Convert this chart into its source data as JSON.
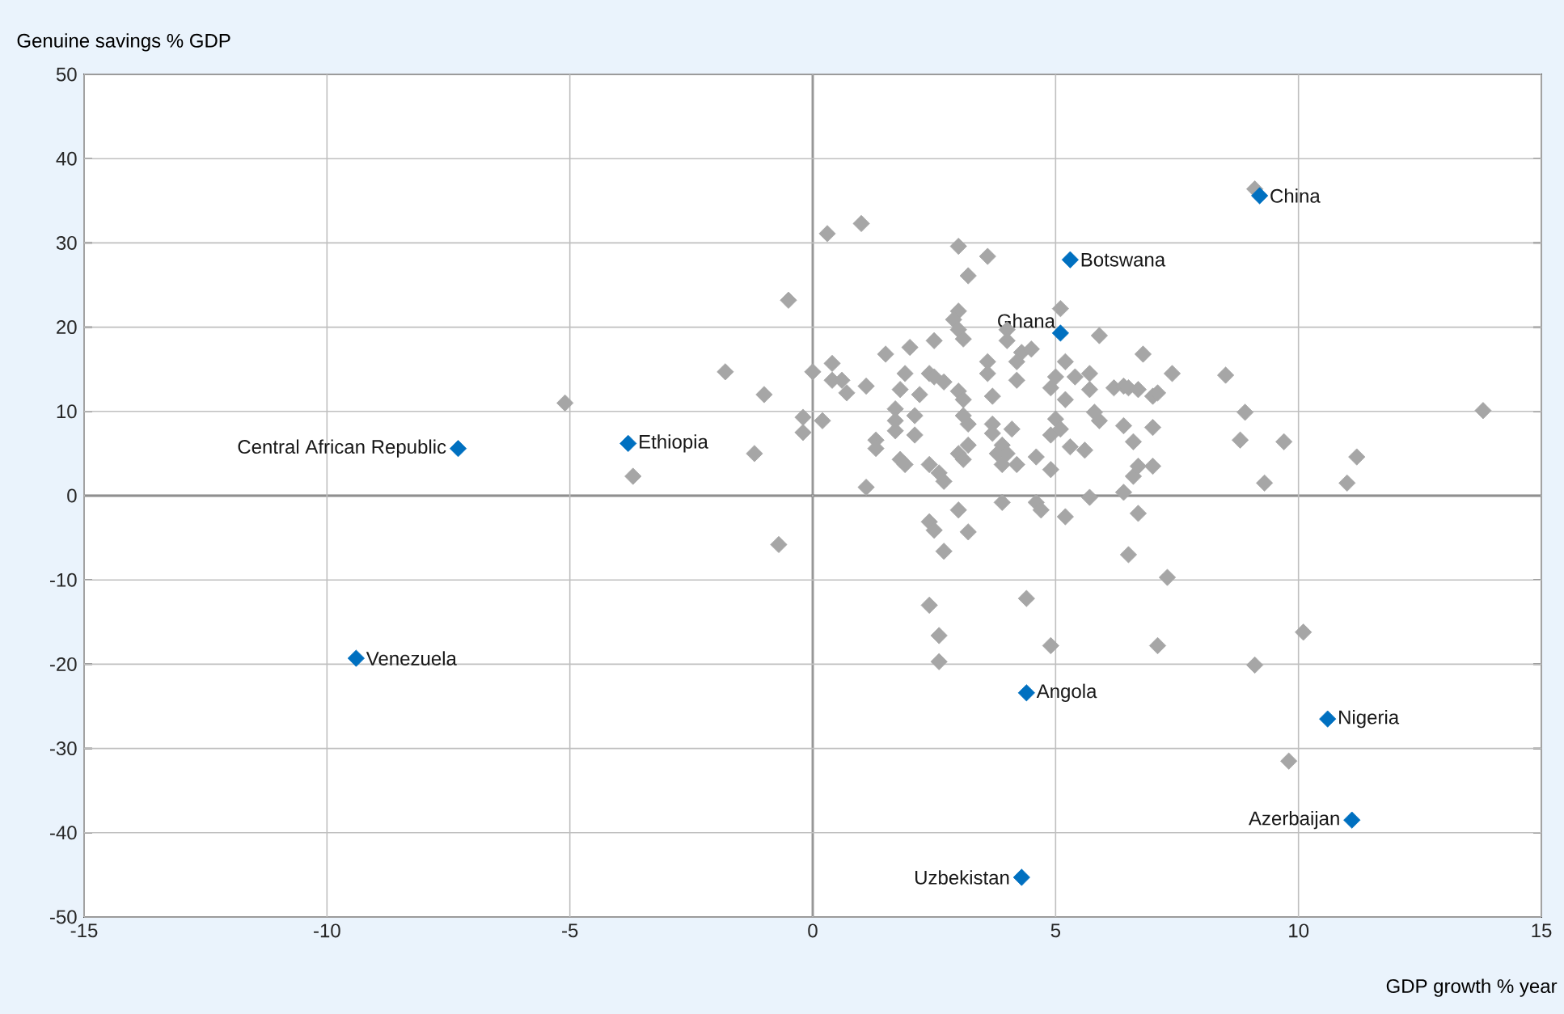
{
  "chart_data": {
    "type": "scatter",
    "xlabel": "GDP growth % year",
    "ylabel": "Genuine savings % GDP",
    "xlim": [
      -15,
      15
    ],
    "ylim": [
      -50,
      50
    ],
    "xticks": [
      -15,
      -10,
      -5,
      0,
      5,
      10,
      15
    ],
    "yticks": [
      -50,
      -40,
      -30,
      -20,
      -10,
      0,
      10,
      20,
      30,
      40,
      50
    ],
    "grid": true,
    "marker": "diamond",
    "series": [
      {
        "color": "#a6a6a6",
        "x": [
          -5.1,
          -1.8,
          -1.0,
          -1.2,
          -3.7,
          -0.7,
          -0.5,
          0.3,
          1.0,
          0.0,
          -0.2,
          -0.2,
          0.2,
          0.4,
          0.4,
          0.6,
          0.7,
          1.1,
          1.1,
          1.3,
          1.3,
          1.5,
          1.7,
          1.7,
          1.7,
          1.8,
          1.9,
          2.0,
          2.2,
          1.8,
          1.9,
          2.1,
          2.1,
          2.4,
          2.5,
          2.5,
          2.7,
          2.4,
          2.6,
          2.7,
          2.4,
          2.5,
          2.7,
          2.4,
          2.6,
          2.6,
          3.0,
          3.0,
          3.2,
          3.6,
          3.0,
          2.9,
          3.0,
          3.1,
          3.0,
          3.1,
          3.1,
          3.2,
          3.0,
          3.1,
          3.2,
          3.2,
          3.6,
          3.6,
          3.7,
          3.7,
          3.7,
          3.9,
          3.8,
          3.9,
          3.9,
          4.0,
          4.0,
          4.3,
          4.2,
          4.2,
          4.1,
          4.0,
          4.2,
          4.4,
          4.5,
          4.6,
          4.6,
          4.7,
          4.9,
          4.9,
          4.9,
          4.9,
          5.0,
          5.0,
          5.1,
          5.2,
          5.2,
          5.2,
          5.1,
          5.3,
          5.4,
          5.7,
          5.7,
          5.9,
          5.6,
          5.7,
          5.8,
          5.9,
          6.2,
          6.4,
          6.5,
          6.4,
          6.5,
          6.6,
          6.6,
          6.4,
          6.7,
          6.7,
          6.8,
          6.7,
          7.0,
          7.0,
          7.1,
          7.4,
          7.0,
          7.1,
          7.3,
          8.5,
          8.9,
          8.8,
          9.3,
          9.7,
          9.1,
          10.1,
          9.8,
          11.0,
          11.2,
          13.8,
          9.1
        ],
        "values": [
          11.0,
          14.7,
          12.0,
          5.0,
          2.3,
          -5.8,
          23.2,
          31.1,
          32.3,
          14.7,
          9.3,
          7.5,
          8.9,
          15.7,
          13.7,
          13.7,
          12.2,
          13.0,
          1.0,
          6.6,
          5.6,
          16.8,
          7.7,
          10.3,
          8.9,
          12.6,
          14.5,
          17.6,
          12.0,
          4.3,
          3.7,
          9.5,
          7.2,
          14.5,
          14.1,
          18.4,
          13.5,
          3.7,
          2.7,
          1.7,
          -3.1,
          -4.1,
          -6.6,
          -13.0,
          -16.6,
          -19.7,
          -1.7,
          29.6,
          26.1,
          28.4,
          21.9,
          20.9,
          19.7,
          18.6,
          12.4,
          11.4,
          9.5,
          8.5,
          5.0,
          4.3,
          6.0,
          -4.3,
          15.9,
          14.5,
          11.8,
          8.5,
          7.4,
          6.0,
          5.0,
          3.7,
          -0.8,
          19.7,
          18.4,
          17.0,
          15.9,
          13.7,
          7.9,
          5.0,
          3.7,
          -12.2,
          17.4,
          4.6,
          -0.8,
          -1.7,
          -17.8,
          3.1,
          7.2,
          12.8,
          14.1,
          9.1,
          22.2,
          15.9,
          11.4,
          -2.5,
          7.9,
          5.8,
          14.1,
          14.5,
          12.6,
          19.0,
          5.4,
          -0.2,
          9.9,
          8.9,
          12.8,
          13.0,
          12.8,
          8.3,
          -7.0,
          6.4,
          2.3,
          0.4,
          3.5,
          -2.1,
          16.8,
          12.6,
          11.8,
          8.1,
          12.2,
          14.5,
          3.5,
          -17.8,
          -9.7,
          14.3,
          9.9,
          6.6,
          1.5,
          6.4,
          -20.1,
          -16.2,
          -31.5,
          1.5,
          4.6,
          10.1,
          36.4
        ]
      },
      {
        "color": "#0070c0",
        "x": [
          9.2,
          5.3,
          5.1,
          -7.3,
          -3.8,
          -9.4,
          4.4,
          10.6,
          11.1,
          4.3
        ],
        "values": [
          35.6,
          28.0,
          19.3,
          5.6,
          6.2,
          -19.3,
          -23.4,
          -26.5,
          -38.5,
          -45.3
        ]
      }
    ],
    "annotations": [
      {
        "text": "China",
        "x": 9.2,
        "y": 35.6
      },
      {
        "text": "Botswana",
        "x": 5.3,
        "y": 28.0
      },
      {
        "text": "Ghana",
        "x": 5.1,
        "y": 19.3
      },
      {
        "text": "Central African Republic",
        "x": -7.3,
        "y": 5.6
      },
      {
        "text": "Ethiopia",
        "x": -3.8,
        "y": 6.2
      },
      {
        "text": "Venezuela",
        "x": -9.4,
        "y": -19.3
      },
      {
        "text": "Angola",
        "x": 4.4,
        "y": -23.4
      },
      {
        "text": "Nigeria",
        "x": 10.6,
        "y": -26.5
      },
      {
        "text": "Azerbaijan",
        "x": 11.1,
        "y": -38.5
      },
      {
        "text": "Uzbekistan",
        "x": 4.3,
        "y": -45.3
      }
    ]
  }
}
